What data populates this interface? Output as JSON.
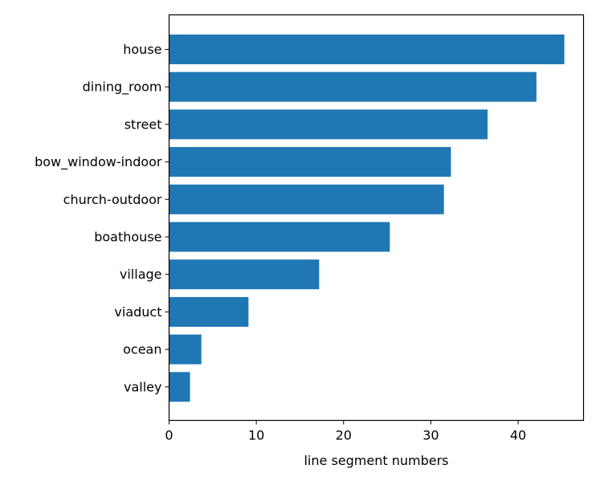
{
  "chart_data": {
    "type": "bar",
    "orientation": "horizontal",
    "categories": [
      "house",
      "dining_room",
      "street",
      "bow_window-indoor",
      "church-outdoor",
      "boathouse",
      "village",
      "viaduct",
      "ocean",
      "valley"
    ],
    "values": [
      45.3,
      42.1,
      36.5,
      32.3,
      31.5,
      25.3,
      17.2,
      9.1,
      3.7,
      2.4
    ],
    "bar_color": "#1f77b4",
    "xlabel": "line segment numbers",
    "ylabel": "",
    "title": "",
    "xlim": [
      0,
      47.5
    ],
    "xticks": [
      0,
      10,
      20,
      30,
      40
    ],
    "grid": false,
    "legend": "none"
  }
}
